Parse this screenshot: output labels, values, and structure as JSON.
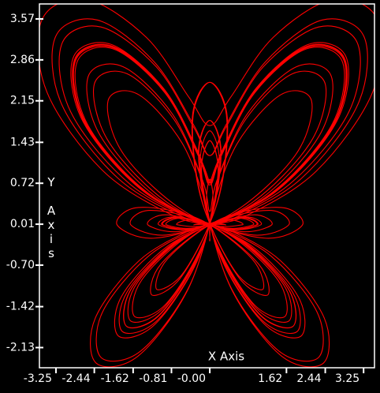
{
  "chart_data": {
    "type": "line",
    "x_label": "X Axis",
    "y_label": "Y Axis",
    "color": "#ff0000",
    "xlim": [
      -3.6,
      3.48
    ],
    "ylim": [
      -2.48,
      3.83
    ],
    "xticks": [
      -3.25,
      -2.44,
      -1.62,
      -0.81,
      {
        "value": 0,
        "label": "-0.00"
      },
      1.62,
      2.44,
      3.25
    ],
    "yticks": [
      -2.13,
      -1.42,
      {
        "value": -0.7,
        "label": "-0.70"
      },
      0.01,
      0.72,
      1.43,
      2.15,
      2.86,
      3.57
    ],
    "x": [
      0,
      0.24,
      0.96,
      2.06,
      2.85,
      2.62,
      1.35,
      -0.2,
      -1,
      -0.58,
      0.63,
      1.65,
      1.76,
      1.03,
      0.15,
      -0.2,
      0,
      0.2,
      -0.15,
      -1.03,
      -1.76,
      -1.65,
      -0.62,
      0.59,
      1.01,
      0.21,
      -1.34,
      -2.61,
      -2.84,
      -2.05,
      -0.95,
      -0.24,
      0,
      0.24,
      0.95,
      2.04,
      2.81,
      2.57,
      1.29,
      -0.27,
      -1.08,
      -0.67,
      0.53,
      1.56,
      1.67,
      0.95,
      0.09,
      -0.23,
      0,
      0.24,
      -0.07,
      -0.9,
      -1.59,
      -1.44,
      -0.37,
      0.87,
      1.31,
      0.52,
      -1.03,
      -2.31,
      -2.57,
      -1.83,
      -0.79,
      -0.15,
      0,
      0.14,
      0.76,
      1.75,
      2.44,
      2.12,
      0.78,
      -0.83,
      -1.67,
      -1.26,
      -0.03,
      1.04,
      1.22,
      0.59,
      -0.15,
      -0.36,
      0,
      0.37,
      0.18,
      -0.53,
      -1.12,
      -0.89,
      0.23,
      1.51,
      1.96,
      1.14,
      -0.45,
      -1.81,
      -2.15,
      -1.51,
      -0.58,
      -0.05,
      0,
      0.05,
      0.58,
      1.51,
      2.15,
      1.81,
      0.45,
      -1.14,
      -1.96,
      -1.51,
      -0.23,
      0.89,
      1.12,
      0.53,
      -0.18,
      -0.37,
      0,
      0.36,
      0.15,
      -0.59,
      -1.22,
      -1.04,
      0.03,
      1.26,
      1.67,
      0.83,
      -0.78,
      -2.12,
      -2.44,
      -1.75,
      -0.76,
      -0.14,
      0,
      0.15,
      0.79,
      1.83,
      2.57,
      2.31,
      1.03,
      -0.52,
      -1.31,
      -0.87,
      0.37,
      1.44,
      1.59,
      0.9,
      0.07,
      -0.24,
      0,
      0.23,
      -0.09,
      -0.95,
      -1.67,
      -1.56,
      -0.53,
      0.67,
      1.08,
      0.27,
      -1.29,
      -2.57,
      -2.81,
      -2.04,
      -0.95,
      -0.24,
      0,
      0.24,
      0.95,
      2.05,
      2.84,
      2.61,
      1.34,
      -0.21,
      -1.01,
      -0.59,
      0.62,
      1.65,
      1.76,
      1.03,
      0.15,
      -0.2,
      0,
      0.2,
      -0.15,
      -1.03,
      -1.76,
      -1.65,
      -0.63,
      0.58,
      1,
      0.2,
      -1.35,
      -2.62,
      -2.85,
      -2.06,
      -0.96,
      -0.24,
      0,
      0.24,
      0.96,
      2.06,
      2.85,
      2.62,
      1.35,
      -0.2,
      -1,
      -0.58,
      0.63,
      1.65,
      1.76,
      1.03,
      0.15,
      -0.2,
      0,
      0.2,
      -0.15,
      -1.03,
      -1.76,
      -1.66,
      -0.64,
      0.57,
      0.99,
      0.19,
      -1.37,
      -2.64,
      -2.86,
      -2.07,
      -0.97,
      -0.25,
      0,
      0.25,
      0.98,
      2.09,
      2.89,
      2.68,
      1.42,
      -0.12,
      -0.92,
      -0.49,
      0.73,
      1.75,
      1.85,
      1.1,
      0.21,
      -0.17,
      0,
      0.17,
      -0.23,
      -1.15,
      -1.93,
      -1.87,
      -0.89,
      0.29,
      0.69,
      -0.13,
      -1.68,
      -2.94,
      -3.13,
      -2.3,
      -1.13,
      -0.34,
      0,
      0.34,
      1.17,
      2.37,
      3.26,
      3.13,
      1.93,
      0.44,
      -0.33,
      0.1,
      1.29,
      2.27,
      2.3,
      1.46,
      0.46,
      -0.04,
      0,
      0.04,
      -0.49,
      -1.52,
      -2.4,
      -2.42,
      -1.49,
      -0.35,
      0.04,
      -0.75,
      -2.25,
      -3.44,
      -3.55,
      -2.61,
      -1.34,
      -0.44,
      0,
      0.44,
      1.34,
      2.61,
      3.55,
      3.44,
      2.25,
      0.75,
      -0.04,
      0.35,
      1.49,
      2.42,
      2.4,
      1.52,
      0.49,
      -0.04,
      0,
      0.04,
      -0.46,
      -1.46,
      -2.3,
      -2.27,
      -1.29,
      -0.1,
      0.33,
      -0.44,
      -1.93,
      -3.13,
      -3.26,
      -2.37,
      -1.17,
      -0.34,
      0,
      0.34,
      1.13,
      2.3,
      3.13,
      2.94,
      1.68,
      0.13,
      -0.69,
      -0.29,
      0.89,
      1.87,
      1.93,
      1.15,
      0.23,
      -0.17,
      0,
      0.17,
      -0.21,
      -1.1,
      -1.85,
      -1.75,
      -0.73,
      0.49,
      0.92,
      0.12,
      -1.42,
      -2.68,
      -2.89,
      -2.09,
      -0.98,
      -0.25,
      0,
      0.25,
      0.97,
      2.07,
      2.86,
      2.64,
      1.37,
      -0.19,
      -0.99,
      -0.57,
      0.64,
      1.66,
      1.76,
      1.03,
      0.15,
      -0.2,
      0,
      0.2,
      -0.15,
      -1.03,
      -1.76,
      -1.65,
      -0.63,
      0.58,
      1,
      0.2,
      -1.35,
      -2.62,
      -2.85,
      -2.06,
      -0.96,
      -0.24,
      0
    ],
    "values": [
      0.72,
      1.23,
      2.33,
      3.09,
      2.85,
      1.75,
      0.56,
      -0.04,
      0,
      0.12,
      -0.26,
      -1.1,
      -1.76,
      -1.54,
      -0.37,
      1.02,
      1.63,
      1.02,
      -0.36,
      -1.53,
      -1.76,
      -1.1,
      -0.26,
      0.12,
      0,
      -0.04,
      0.56,
      1.75,
      2.84,
      3.07,
      2.31,
      1.2,
      0.69,
      1.19,
      2.29,
      3.05,
      2.81,
      1.72,
      0.54,
      -0.05,
      0,
      0.13,
      -0.22,
      -1.04,
      -1.67,
      -1.42,
      -0.23,
      1.18,
      1.81,
      1.21,
      -0.17,
      -1.35,
      -1.59,
      -0.96,
      -0.15,
      0.17,
      0,
      -0.1,
      0.42,
      1.54,
      2.57,
      2.74,
      1.92,
      0.77,
      0.23,
      0.73,
      1.83,
      2.62,
      2.44,
      1.42,
      0.32,
      -0.17,
      0,
      0.25,
      0.01,
      -0.69,
      -1.22,
      -0.89,
      0.37,
      1.82,
      2.47,
      1.86,
      0.44,
      -0.8,
      -1.12,
      -0.59,
      0.1,
      0.3,
      0,
      -0.23,
      0.19,
      1.21,
      2.15,
      2.26,
      1.41,
      0.25,
      -0.28,
      0.25,
      1.41,
      2.26,
      2.15,
      1.21,
      0.19,
      -0.23,
      0,
      0.3,
      0.1,
      -0.59,
      -1.12,
      -0.8,
      0.44,
      1.86,
      2.47,
      1.82,
      0.37,
      -0.89,
      -1.22,
      -0.69,
      0.01,
      0.25,
      0,
      -0.17,
      0.32,
      1.42,
      2.44,
      2.62,
      1.83,
      0.73,
      0.23,
      0.77,
      1.92,
      2.74,
      2.57,
      1.54,
      0.42,
      -0.1,
      0,
      0.17,
      -0.15,
      -0.96,
      -1.59,
      -1.35,
      -0.17,
      1.21,
      1.81,
      1.18,
      -0.23,
      -1.42,
      -1.67,
      -1.04,
      -0.22,
      0.13,
      0,
      -0.05,
      0.54,
      1.72,
      2.81,
      3.05,
      2.29,
      1.19,
      0.69,
      1.2,
      2.31,
      3.07,
      2.84,
      1.75,
      0.56,
      -0.04,
      0,
      0.12,
      -0.26,
      -1.1,
      -1.76,
      -1.53,
      -0.36,
      1.02,
      1.63,
      1.02,
      -0.37,
      -1.54,
      -1.76,
      -1.1,
      -0.26,
      0.12,
      0,
      -0.04,
      0.56,
      1.75,
      2.85,
      3.09,
      2.33,
      1.23,
      0.72,
      1.23,
      2.33,
      3.09,
      2.85,
      1.75,
      0.56,
      -0.04,
      0,
      0.12,
      -0.26,
      -1.1,
      -1.76,
      -1.54,
      -0.37,
      1.02,
      1.63,
      1.02,
      -0.37,
      -1.54,
      -1.76,
      -1.11,
      -0.26,
      0.11,
      0,
      -0.04,
      0.57,
      1.76,
      2.86,
      3.1,
      2.35,
      1.26,
      0.75,
      1.27,
      2.37,
      3.13,
      2.89,
      1.79,
      0.59,
      -0.02,
      0,
      0.1,
      -0.3,
      -1.17,
      -1.85,
      -1.65,
      -0.51,
      0.86,
      1.46,
      0.83,
      -0.56,
      -1.72,
      -1.93,
      -1.25,
      -0.37,
      0.06,
      0,
      0.03,
      0.7,
      1.96,
      3.13,
      3.43,
      2.74,
      1.69,
      1.2,
      1.73,
      2.82,
      3.55,
      3.26,
      2.09,
      0.8,
      0.09,
      0,
      -0.02,
      -0.54,
      -1.52,
      -2.3,
      -2.19,
      -1.11,
      0.21,
      0.79,
      0.18,
      -1.17,
      -2.28,
      -2.4,
      -1.62,
      -0.62,
      -0.07,
      0,
      0.15,
      0.93,
      2.3,
      3.55,
      3.91,
      3.25,
      2.21,
      1.72,
      2.21,
      3.25,
      3.91,
      3.55,
      2.3,
      0.93,
      0.15,
      0,
      -0.07,
      -0.62,
      -1.62,
      -2.4,
      -2.28,
      -1.17,
      0.18,
      0.79,
      0.21,
      -1.11,
      -2.19,
      -2.3,
      -1.52,
      -0.54,
      -0.02,
      0,
      0.09,
      0.8,
      2.09,
      3.26,
      3.55,
      2.82,
      1.73,
      1.2,
      1.69,
      2.74,
      3.43,
      3.13,
      1.96,
      0.7,
      0.03,
      0,
      0.06,
      -0.37,
      -1.25,
      -1.93,
      -1.72,
      -0.56,
      0.83,
      1.46,
      0.86,
      -0.51,
      -1.65,
      -1.85,
      -1.17,
      -0.3,
      0.1,
      0,
      -0.02,
      0.59,
      1.79,
      2.89,
      3.13,
      2.37,
      1.27,
      0.75,
      1.26,
      2.35,
      3.1,
      2.86,
      1.76,
      0.57,
      -0.04,
      0,
      0.11,
      -0.26,
      -1.11,
      -1.76,
      -1.54,
      -0.37,
      1.02,
      1.63,
      1.02,
      -0.37,
      -1.54,
      -1.76,
      -1.1,
      -0.26,
      0.12,
      0,
      -0.04,
      0.56,
      1.75,
      2.85,
      3.09,
      2.33,
      1.23,
      0.72
    ]
  }
}
